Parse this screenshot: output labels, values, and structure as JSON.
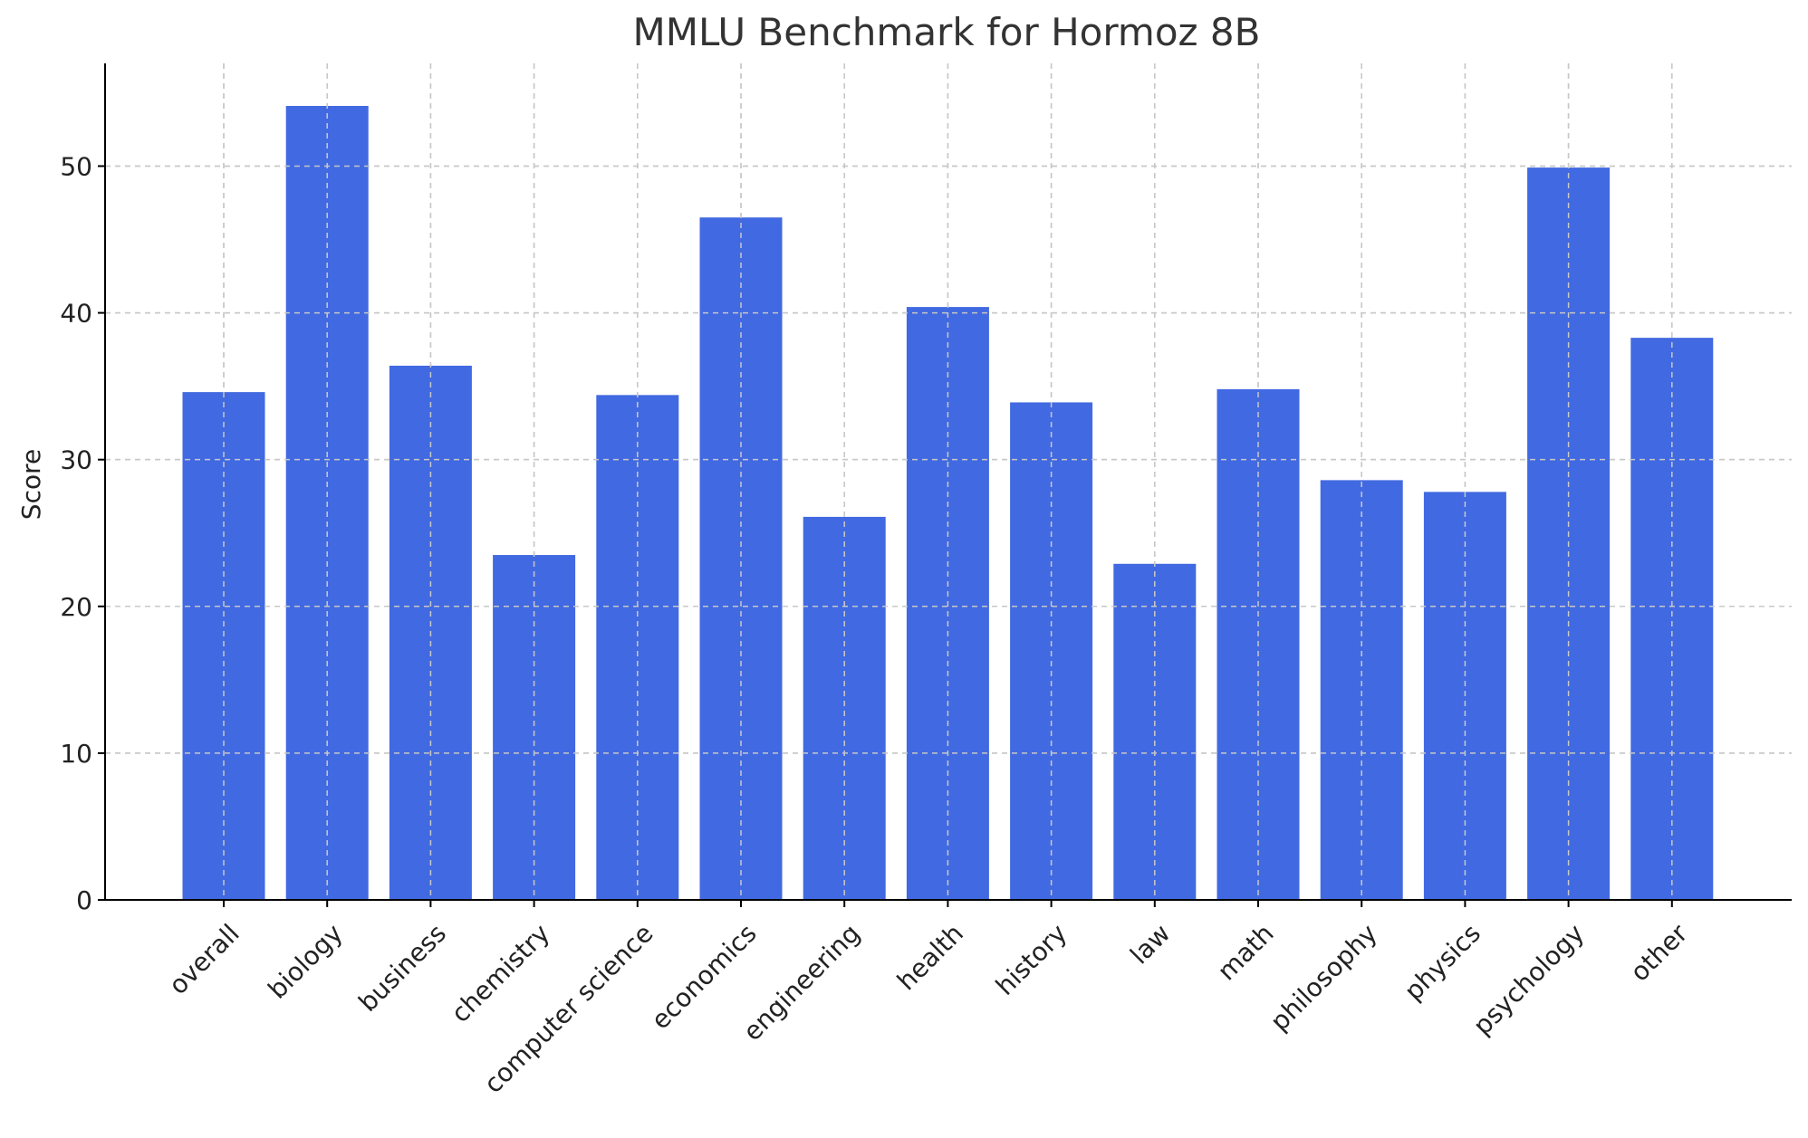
{
  "chart_data": {
    "type": "bar",
    "title": "MMLU Benchmark for Hormoz 8B",
    "xlabel": "",
    "ylabel": "Score",
    "categories": [
      "overall",
      "biology",
      "business",
      "chemistry",
      "computer science",
      "economics",
      "engineering",
      "health",
      "history",
      "law",
      "math",
      "philosophy",
      "physics",
      "psychology",
      "other"
    ],
    "values": [
      34.6,
      54.1,
      36.4,
      23.5,
      34.4,
      46.5,
      26.1,
      40.4,
      33.9,
      22.9,
      34.8,
      28.6,
      27.8,
      49.9,
      38.3
    ],
    "ylim": [
      0,
      57
    ],
    "yticks": [
      0,
      10,
      20,
      30,
      40,
      50
    ],
    "grid": true,
    "bar_color": "#4169E1"
  }
}
